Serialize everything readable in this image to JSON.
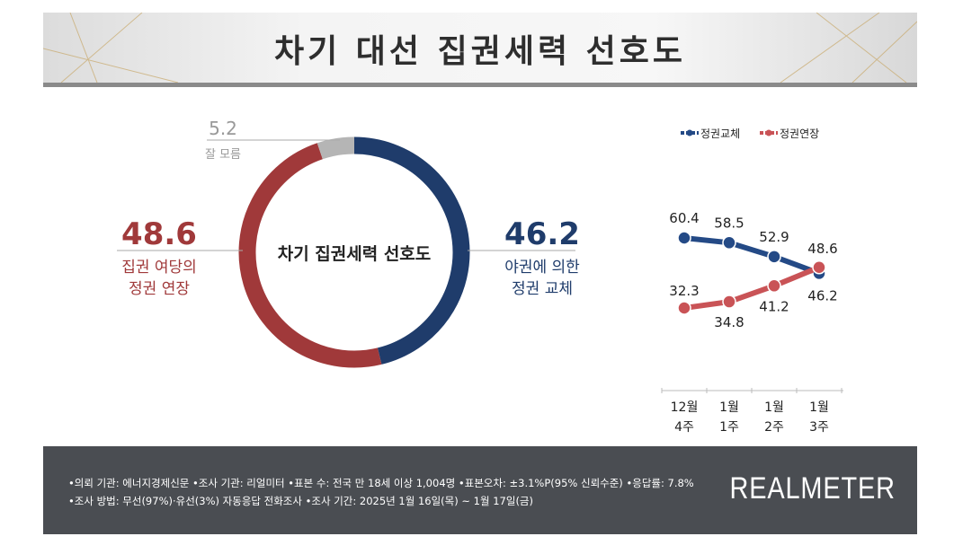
{
  "header": {
    "title": "차기 대선 집권세력 선호도"
  },
  "colors": {
    "blue": "#1f3c6b",
    "red": "#a0393a",
    "grey": "#b5b5b5",
    "line_blue": "#244a86",
    "line_red": "#c95356"
  },
  "chart_data": [
    {
      "type": "pie",
      "donut": true,
      "title": "차기 집권세력 선호도",
      "slices": [
        {
          "label_lines": [
            "야권에 의한",
            "정권 교체"
          ],
          "value": 46.2,
          "value_label": "46.2"
        },
        {
          "label_lines": [
            "집권 여당의",
            "정권 연장"
          ],
          "value": 48.6,
          "value_label": "48.6"
        },
        {
          "label_lines": [
            "잘 모름"
          ],
          "value": 5.2,
          "value_label": "5.2"
        }
      ]
    },
    {
      "type": "line",
      "categories": [
        [
          "12월",
          "4주"
        ],
        [
          "1월",
          "1주"
        ],
        [
          "1월",
          "2주"
        ],
        [
          "1월",
          "3주"
        ]
      ],
      "legend_position": "top",
      "series": [
        {
          "name": "정권교체",
          "values": [
            60.4,
            58.5,
            52.9,
            46.2
          ],
          "labels": [
            "60.4",
            "58.5",
            "52.9",
            "46.2"
          ]
        },
        {
          "name": "정권연장",
          "values": [
            32.3,
            34.8,
            41.2,
            48.6
          ],
          "labels": [
            "32.3",
            "34.8",
            "41.2",
            "48.6"
          ]
        }
      ]
    }
  ],
  "footer": {
    "line1": "•의뢰 기관: 에너지경제신문 •조사 기관: 리얼미터 •표본 수: 전국 만 18세 이상 1,004명 •표본오차: ±3.1%P(95% 신뢰수준) •응답률: 7.8%",
    "line2": "•조사 방법: 무선(97%)·유선(3%) 자동응답 전화조사 •조사 기간: 2025년 1월 16일(목) ~ 1월 17일(금)",
    "logo": "REALMETER"
  }
}
